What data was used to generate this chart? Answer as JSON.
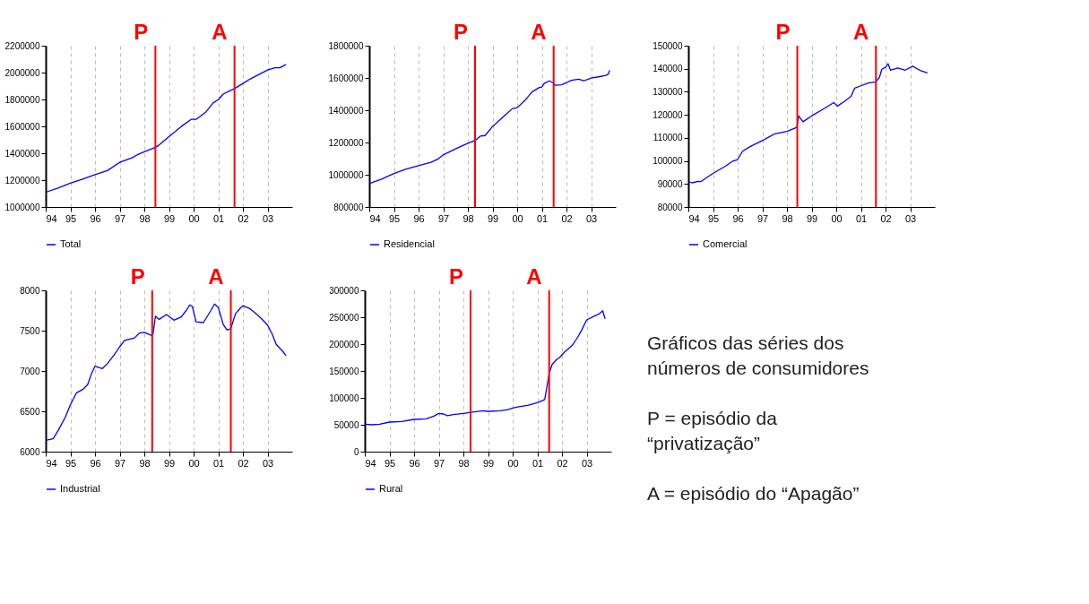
{
  "chart_data": [
    {
      "type": "line",
      "xlim": [
        1994,
        2004
      ],
      "xticks": [
        {
          "value": 1994,
          "label": "94"
        },
        {
          "value": 1995,
          "label": "95"
        },
        {
          "value": 1996,
          "label": "96"
        },
        {
          "value": 1997,
          "label": "97"
        },
        {
          "value": 1998,
          "label": "98"
        },
        {
          "value": 1999,
          "label": "99"
        },
        {
          "value": 2000,
          "label": "00"
        },
        {
          "value": 2001,
          "label": "01"
        },
        {
          "value": 2002,
          "label": "02"
        },
        {
          "value": 2003,
          "label": "03"
        }
      ],
      "ylim": [
        1000000,
        2200000
      ],
      "yticks": [
        1000000,
        1200000,
        1400000,
        1600000,
        1800000,
        2000000,
        2200000
      ],
      "grid": "x",
      "legend": "bottom",
      "series": [
        {
          "name": "Total",
          "color": "#0000ff",
          "x": [
            1994.0,
            1994.5,
            1995.0,
            1995.5,
            1996.0,
            1996.5,
            1997.0,
            1997.5,
            1997.7,
            1998.0,
            1998.45,
            1998.6,
            1999.0,
            1999.5,
            1999.9,
            2000.1,
            2000.5,
            2000.8,
            2001.0,
            2001.2,
            2001.66,
            2002.0,
            2002.3,
            2002.6,
            2003.0,
            2003.3,
            2003.5,
            2003.75
          ],
          "values": [
            1110000,
            1141000,
            1178000,
            1208000,
            1241000,
            1271000,
            1332000,
            1366000,
            1387000,
            1411000,
            1444000,
            1461000,
            1524000,
            1599000,
            1652000,
            1652000,
            1707000,
            1776000,
            1798000,
            1840000,
            1881000,
            1919000,
            1953000,
            1981000,
            2019000,
            2036000,
            2036000,
            2061000
          ]
        }
      ],
      "ref_lines": [
        {
          "axis": "x",
          "value": 1998.45,
          "label": "P",
          "color": "#ff0000"
        },
        {
          "axis": "x",
          "value": 2001.66,
          "label": "A",
          "color": "#ff0000"
        }
      ]
    },
    {
      "type": "line",
      "xlim": [
        1994,
        2004
      ],
      "xticks": [
        {
          "value": 1994,
          "label": "94"
        },
        {
          "value": 1995,
          "label": "95"
        },
        {
          "value": 1996,
          "label": "96"
        },
        {
          "value": 1997,
          "label": "97"
        },
        {
          "value": 1998,
          "label": "98"
        },
        {
          "value": 1999,
          "label": "99"
        },
        {
          "value": 2000,
          "label": "00"
        },
        {
          "value": 2001,
          "label": "01"
        },
        {
          "value": 2002,
          "label": "02"
        },
        {
          "value": 2003,
          "label": "03"
        }
      ],
      "ylim": [
        800000,
        1800000
      ],
      "yticks": [
        800000,
        1000000,
        1200000,
        1400000,
        1600000,
        1800000
      ],
      "grid": "x",
      "legend": "bottom",
      "series": [
        {
          "name": "Residencial",
          "color": "#0000ff",
          "x": [
            1994.0,
            1994.5,
            1995.0,
            1995.5,
            1996.0,
            1996.5,
            1996.8,
            1997.0,
            1997.5,
            1997.7,
            1998.0,
            1998.3,
            1998.5,
            1998.7,
            1999.0,
            1999.5,
            1999.8,
            2000.0,
            2000.3,
            2000.6,
            2000.9,
            2001.0,
            2001.1,
            2001.3,
            2001.45,
            2001.55,
            2001.8,
            2002.0,
            2002.2,
            2002.5,
            2002.7,
            2003.0,
            2003.3,
            2003.6,
            2003.7,
            2003.75
          ],
          "values": [
            945000,
            973000,
            1008000,
            1035000,
            1056000,
            1077000,
            1098000,
            1123000,
            1160000,
            1174000,
            1195000,
            1213000,
            1239000,
            1243000,
            1299000,
            1368000,
            1409000,
            1416000,
            1458000,
            1513000,
            1541000,
            1544000,
            1566000,
            1582000,
            1571000,
            1555000,
            1558000,
            1571000,
            1585000,
            1592000,
            1582000,
            1599000,
            1607000,
            1616000,
            1624000,
            1648000
          ]
        }
      ],
      "ref_lines": [
        {
          "axis": "x",
          "value": 1998.29,
          "label": "P",
          "color": "#ff0000"
        },
        {
          "axis": "x",
          "value": 2001.48,
          "label": "A",
          "color": "#ff0000"
        }
      ]
    },
    {
      "type": "line",
      "xlim": [
        1994,
        2004
      ],
      "xticks": [
        {
          "value": 1994,
          "label": "94"
        },
        {
          "value": 1995,
          "label": "95"
        },
        {
          "value": 1996,
          "label": "96"
        },
        {
          "value": 1997,
          "label": "97"
        },
        {
          "value": 1998,
          "label": "98"
        },
        {
          "value": 1999,
          "label": "99"
        },
        {
          "value": 2000,
          "label": "00"
        },
        {
          "value": 2001,
          "label": "01"
        },
        {
          "value": 2002,
          "label": "02"
        },
        {
          "value": 2003,
          "label": "03"
        }
      ],
      "ylim": [
        80000,
        150000
      ],
      "yticks": [
        80000,
        90000,
        100000,
        110000,
        120000,
        130000,
        140000,
        150000
      ],
      "grid": "x",
      "legend": "bottom",
      "series": [
        {
          "name": "Comercial",
          "color": "#0000ff",
          "x": [
            1994.0,
            1994.15,
            1994.4,
            1994.5,
            1995.0,
            1995.5,
            1995.8,
            1996.0,
            1996.2,
            1996.5,
            1997.0,
            1997.3,
            1997.5,
            1998.0,
            1998.4,
            1998.48,
            1998.65,
            1999.0,
            1999.5,
            1999.9,
            2000.05,
            2000.3,
            2000.6,
            2000.75,
            2001.0,
            2001.3,
            2001.6,
            2001.75,
            2001.85,
            2002.0,
            2002.1,
            2002.2,
            2002.5,
            2002.8,
            2003.1,
            2003.4,
            2003.7
          ],
          "values": [
            91000,
            90500,
            91100,
            91000,
            94600,
            97700,
            99900,
            100600,
            104200,
            106200,
            108800,
            110600,
            111700,
            112800,
            114600,
            119500,
            117000,
            119500,
            122700,
            125300,
            123800,
            125600,
            128000,
            131600,
            132600,
            133800,
            134300,
            136200,
            139800,
            140600,
            142200,
            139400,
            140300,
            139400,
            141100,
            139300,
            138200
          ]
        }
      ],
      "ref_lines": [
        {
          "axis": "x",
          "value": 1998.42,
          "label": "P",
          "color": "#ff0000"
        },
        {
          "axis": "x",
          "value": 2001.61,
          "label": "A",
          "color": "#ff0000"
        }
      ]
    },
    {
      "type": "line",
      "xlim": [
        1994,
        2004
      ],
      "xticks": [
        {
          "value": 1994,
          "label": "94"
        },
        {
          "value": 1995,
          "label": "95"
        },
        {
          "value": 1996,
          "label": "96"
        },
        {
          "value": 1997,
          "label": "97"
        },
        {
          "value": 1998,
          "label": "98"
        },
        {
          "value": 1999,
          "label": "99"
        },
        {
          "value": 2000,
          "label": "00"
        },
        {
          "value": 2001,
          "label": "01"
        },
        {
          "value": 2002,
          "label": "02"
        },
        {
          "value": 2003,
          "label": "03"
        }
      ],
      "ylim": [
        6000,
        8000
      ],
      "yticks": [
        6000,
        6500,
        7000,
        7500,
        8000
      ],
      "grid": "x",
      "legend": "bottom",
      "series": [
        {
          "name": "Industrial",
          "color": "#0000ff",
          "x": [
            1994.0,
            1994.3,
            1994.5,
            1994.8,
            1995.0,
            1995.25,
            1995.5,
            1995.7,
            1995.85,
            1996.0,
            1996.3,
            1996.5,
            1996.8,
            1997.0,
            1997.2,
            1997.6,
            1997.8,
            1998.0,
            1998.3,
            1998.35,
            1998.45,
            1998.6,
            1998.9,
            1999.2,
            1999.5,
            1999.7,
            1999.85,
            1999.95,
            2000.1,
            2000.4,
            2000.7,
            2000.85,
            2001.0,
            2001.2,
            2001.35,
            2001.5,
            2001.7,
            2001.9,
            2002.0,
            2002.3,
            2002.5,
            2002.75,
            2003.0,
            2003.2,
            2003.35,
            2003.6,
            2003.75
          ],
          "values": [
            6140,
            6160,
            6260,
            6430,
            6580,
            6730,
            6770,
            6830,
            6960,
            7060,
            7030,
            7090,
            7210,
            7300,
            7380,
            7410,
            7470,
            7480,
            7440,
            7450,
            7680,
            7640,
            7700,
            7630,
            7670,
            7750,
            7820,
            7800,
            7610,
            7600,
            7750,
            7830,
            7790,
            7580,
            7510,
            7520,
            7710,
            7780,
            7810,
            7770,
            7720,
            7650,
            7570,
            7450,
            7330,
            7250,
            7190
          ]
        }
      ],
      "ref_lines": [
        {
          "axis": "x",
          "value": 1998.32,
          "label": "P",
          "color": "#ff0000"
        },
        {
          "axis": "x",
          "value": 2001.51,
          "label": "A",
          "color": "#ff0000"
        }
      ]
    },
    {
      "type": "line",
      "xlim": [
        1994,
        2004
      ],
      "xticks": [
        {
          "value": 1994,
          "label": "94"
        },
        {
          "value": 1995,
          "label": "95"
        },
        {
          "value": 1996,
          "label": "96"
        },
        {
          "value": 1997,
          "label": "97"
        },
        {
          "value": 1998,
          "label": "98"
        },
        {
          "value": 1999,
          "label": "99"
        },
        {
          "value": 2000,
          "label": "00"
        },
        {
          "value": 2001,
          "label": "01"
        },
        {
          "value": 2002,
          "label": "02"
        },
        {
          "value": 2003,
          "label": "03"
        }
      ],
      "ylim": [
        0,
        300000
      ],
      "yticks": [
        0,
        50000,
        100000,
        150000,
        200000,
        250000,
        300000
      ],
      "grid": "x",
      "legend": "bottom",
      "series": [
        {
          "name": "Rural",
          "color": "#0000ff",
          "x": [
            1994.0,
            1994.3,
            1994.6,
            1995.0,
            1995.5,
            1996.0,
            1996.5,
            1996.8,
            1997.0,
            1997.2,
            1997.35,
            1997.6,
            1998.0,
            1998.3,
            1998.8,
            1999.0,
            1999.5,
            1999.8,
            2000.0,
            2000.2,
            2000.6,
            2001.0,
            2001.3,
            2001.48,
            2001.6,
            2001.8,
            2001.9,
            2002.1,
            2002.4,
            2002.6,
            2002.8,
            2003.0,
            2003.3,
            2003.5,
            2003.65,
            2003.75
          ],
          "values": [
            51000,
            50000,
            51000,
            55000,
            56000,
            60000,
            61000,
            66000,
            71000,
            70000,
            67000,
            69000,
            71000,
            73000,
            76000,
            75000,
            76000,
            78000,
            81000,
            83000,
            86000,
            91000,
            97000,
            145000,
            162000,
            172000,
            175000,
            185000,
            197000,
            210000,
            226000,
            245000,
            252000,
            256000,
            262000,
            247000
          ]
        }
      ],
      "ref_lines": [
        {
          "axis": "x",
          "value": 1998.29,
          "label": "P",
          "color": "#ff0000"
        },
        {
          "axis": "x",
          "value": 2001.48,
          "label": "A",
          "color": "#ff0000"
        }
      ]
    },
    {
      "type": "other",
      "annotations": [
        "Gráficos das séries dos números de consumidores",
        "P = episódio da “privatização”",
        "A = episódio do “Apagão”"
      ]
    }
  ]
}
